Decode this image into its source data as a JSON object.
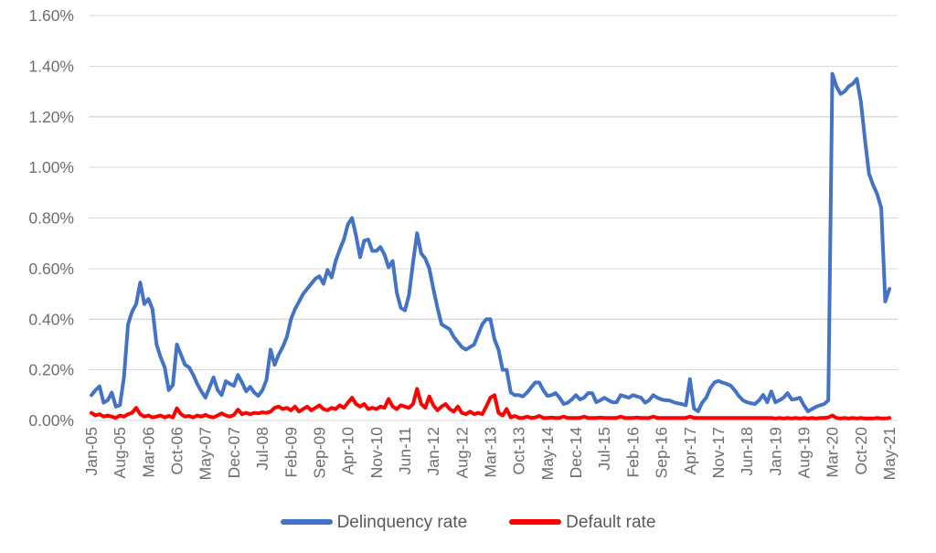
{
  "chart_data": {
    "type": "line",
    "title": "",
    "xlabel": "",
    "ylabel": "",
    "x_start": "Jan-05",
    "x_end": "May-21",
    "x_frequency": "monthly",
    "x_tick_every_n_months": 7,
    "x_tick_labels": [
      "Jan-05",
      "Aug-05",
      "Mar-06",
      "Oct-06",
      "May-07",
      "Dec-07",
      "Jul-08",
      "Feb-09",
      "Sep-09",
      "Apr-10",
      "Nov-10",
      "Jun-11",
      "Jan-12",
      "Aug-12",
      "Mar-13",
      "Oct-13",
      "May-14",
      "Dec-14",
      "Jul-15",
      "Feb-16",
      "Sep-16",
      "Apr-17",
      "Nov-17",
      "Jun-18",
      "Jan-19",
      "Aug-19",
      "Mar-20",
      "Oct-20",
      "May-21"
    ],
    "y_ticks": [
      {
        "label": "0.00%",
        "value": 0.0
      },
      {
        "label": "0.20%",
        "value": 0.2
      },
      {
        "label": "0.40%",
        "value": 0.4
      },
      {
        "label": "0.60%",
        "value": 0.6
      },
      {
        "label": "0.80%",
        "value": 0.8
      },
      {
        "label": "1.00%",
        "value": 1.0
      },
      {
        "label": "1.20%",
        "value": 1.2
      },
      {
        "label": "1.40%",
        "value": 1.4
      },
      {
        "label": "1.60%",
        "value": 1.6
      }
    ],
    "ylim": [
      0.0,
      1.6
    ],
    "grid": "horizontal",
    "gridline_color": "#d9d9d9",
    "axis_text_color": "#6e6e6e",
    "legend_position": "bottom",
    "series": [
      {
        "name": "Delinquency rate",
        "color": "#4472c4",
        "unit": "%",
        "values": [
          0.1,
          0.12,
          0.135,
          0.07,
          0.08,
          0.11,
          0.055,
          0.06,
          0.17,
          0.38,
          0.43,
          0.46,
          0.545,
          0.46,
          0.48,
          0.44,
          0.3,
          0.25,
          0.21,
          0.12,
          0.14,
          0.3,
          0.26,
          0.22,
          0.21,
          0.18,
          0.145,
          0.115,
          0.09,
          0.13,
          0.17,
          0.12,
          0.1,
          0.155,
          0.145,
          0.137,
          0.18,
          0.15,
          0.115,
          0.133,
          0.11,
          0.097,
          0.12,
          0.16,
          0.28,
          0.22,
          0.26,
          0.29,
          0.33,
          0.4,
          0.44,
          0.47,
          0.5,
          0.52,
          0.54,
          0.56,
          0.57,
          0.54,
          0.595,
          0.565,
          0.63,
          0.675,
          0.715,
          0.775,
          0.8,
          0.73,
          0.645,
          0.71,
          0.715,
          0.67,
          0.67,
          0.685,
          0.655,
          0.605,
          0.63,
          0.505,
          0.445,
          0.435,
          0.495,
          0.625,
          0.74,
          0.66,
          0.64,
          0.6,
          0.52,
          0.445,
          0.38,
          0.37,
          0.36,
          0.33,
          0.31,
          0.29,
          0.28,
          0.29,
          0.3,
          0.34,
          0.38,
          0.4,
          0.4,
          0.32,
          0.28,
          0.2,
          0.2,
          0.11,
          0.1,
          0.1,
          0.095,
          0.11,
          0.13,
          0.15,
          0.15,
          0.12,
          0.097,
          0.1,
          0.108,
          0.09,
          0.065,
          0.07,
          0.083,
          0.1,
          0.083,
          0.09,
          0.108,
          0.108,
          0.072,
          0.08,
          0.09,
          0.08,
          0.072,
          0.072,
          0.1,
          0.095,
          0.09,
          0.1,
          0.095,
          0.09,
          0.07,
          0.08,
          0.1,
          0.09,
          0.083,
          0.08,
          0.079,
          0.072,
          0.068,
          0.065,
          0.06,
          0.163,
          0.047,
          0.036,
          0.07,
          0.09,
          0.127,
          0.15,
          0.156,
          0.15,
          0.145,
          0.138,
          0.12,
          0.097,
          0.08,
          0.072,
          0.068,
          0.065,
          0.08,
          0.101,
          0.072,
          0.115,
          0.072,
          0.08,
          0.09,
          0.108,
          0.083,
          0.085,
          0.09,
          0.06,
          0.036,
          0.045,
          0.054,
          0.06,
          0.065,
          0.08,
          1.37,
          1.32,
          1.29,
          1.3,
          1.32,
          1.33,
          1.35,
          1.26,
          1.11,
          0.975,
          0.93,
          0.895,
          0.84,
          0.47,
          0.52
        ]
      },
      {
        "name": "Default rate",
        "color": "#ff0000",
        "unit": "%",
        "values": [
          0.03,
          0.02,
          0.025,
          0.015,
          0.02,
          0.015,
          0.01,
          0.02,
          0.015,
          0.025,
          0.03,
          0.05,
          0.025,
          0.015,
          0.02,
          0.012,
          0.015,
          0.02,
          0.012,
          0.018,
          0.012,
          0.048,
          0.025,
          0.015,
          0.018,
          0.012,
          0.02,
          0.015,
          0.022,
          0.015,
          0.012,
          0.02,
          0.028,
          0.02,
          0.015,
          0.022,
          0.043,
          0.025,
          0.03,
          0.025,
          0.03,
          0.028,
          0.032,
          0.03,
          0.035,
          0.05,
          0.055,
          0.045,
          0.05,
          0.04,
          0.055,
          0.035,
          0.045,
          0.055,
          0.04,
          0.05,
          0.06,
          0.045,
          0.04,
          0.05,
          0.045,
          0.06,
          0.05,
          0.07,
          0.09,
          0.065,
          0.055,
          0.065,
          0.045,
          0.05,
          0.045,
          0.055,
          0.05,
          0.085,
          0.055,
          0.045,
          0.06,
          0.055,
          0.05,
          0.065,
          0.125,
          0.065,
          0.05,
          0.095,
          0.06,
          0.04,
          0.055,
          0.065,
          0.045,
          0.035,
          0.055,
          0.03,
          0.025,
          0.035,
          0.025,
          0.03,
          0.025,
          0.055,
          0.09,
          0.1,
          0.03,
          0.02,
          0.045,
          0.012,
          0.018,
          0.01,
          0.01,
          0.015,
          0.01,
          0.012,
          0.018,
          0.01,
          0.01,
          0.012,
          0.01,
          0.01,
          0.015,
          0.01,
          0.01,
          0.01,
          0.01,
          0.015,
          0.01,
          0.01,
          0.01,
          0.012,
          0.01,
          0.01,
          0.01,
          0.01,
          0.015,
          0.01,
          0.01,
          0.01,
          0.012,
          0.01,
          0.01,
          0.01,
          0.015,
          0.01,
          0.01,
          0.01,
          0.01,
          0.01,
          0.01,
          0.01,
          0.01,
          0.015,
          0.01,
          0.01,
          0.01,
          0.01,
          0.01,
          0.01,
          0.01,
          0.01,
          0.01,
          0.01,
          0.01,
          0.01,
          0.01,
          0.01,
          0.01,
          0.01,
          0.01,
          0.01,
          0.01,
          0.01,
          0.008,
          0.01,
          0.008,
          0.01,
          0.008,
          0.01,
          0.008,
          0.01,
          0.008,
          0.01,
          0.008,
          0.01,
          0.01,
          0.012,
          0.02,
          0.01,
          0.008,
          0.01,
          0.008,
          0.01,
          0.008,
          0.01,
          0.008,
          0.008,
          0.008,
          0.01,
          0.008,
          0.008,
          0.01
        ]
      }
    ]
  },
  "legend": {
    "items": [
      {
        "label": "Delinquency rate"
      },
      {
        "label": "Default rate"
      }
    ]
  }
}
